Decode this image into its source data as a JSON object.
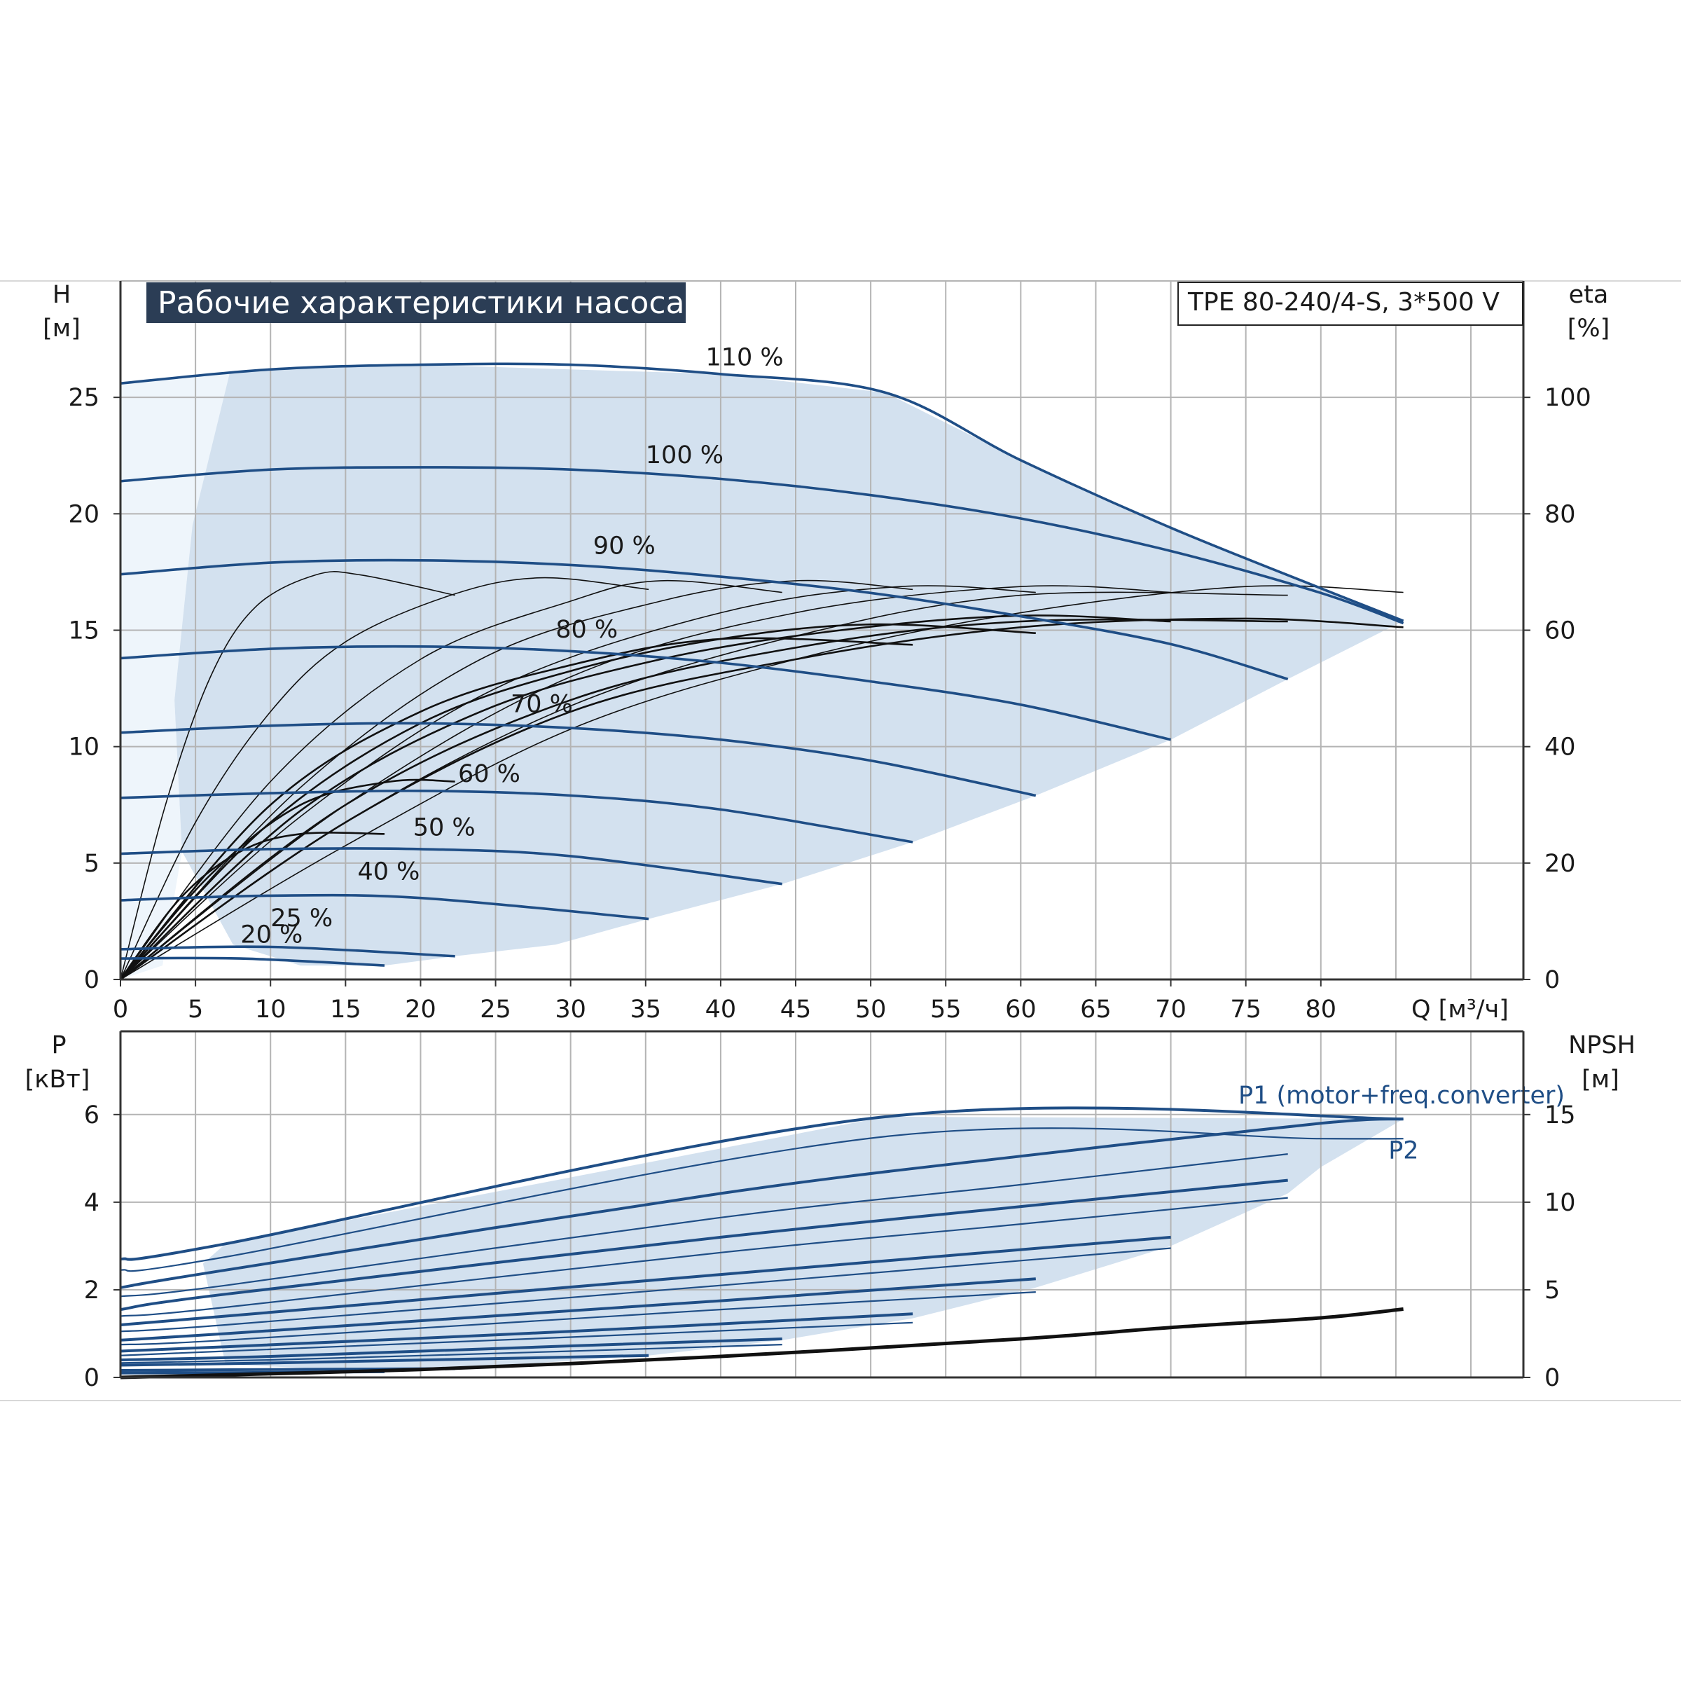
{
  "colors": {
    "grid": "#b4b4b4",
    "axis": "#333333",
    "speed_curve": "#1f4e86",
    "efficiency": "#111111",
    "region_fill": "#d3e1ef",
    "region_fill_light": "#eef5fb",
    "banner_bg": "#2b3d55"
  },
  "chart_data": [
    {
      "type": "line",
      "title": "Рабочие характеристики насоса",
      "model_label": "TPE 80-240/4-S, 3*500 V",
      "xlabel": "Q [м³/ч]",
      "ylabel_main": "H",
      "ylabel_unit": "[м]",
      "y2label_main": "eta",
      "y2label_unit": "[%]",
      "xlim": [
        0,
        93.5
      ],
      "ylim": [
        0,
        30
      ],
      "y2lim": [
        0,
        120
      ],
      "x_ticks": [
        0,
        5,
        10,
        15,
        20,
        25,
        30,
        35,
        40,
        45,
        50,
        55,
        60,
        65,
        70,
        75,
        80
      ],
      "y_ticks": [
        0,
        5,
        10,
        15,
        20,
        25
      ],
      "y2_ticks": [
        0,
        20,
        40,
        60,
        80,
        100
      ],
      "grid": true,
      "series": [
        {
          "name": "110 %",
          "label_at": [
            39,
            26.2
          ],
          "x": [
            0,
            10,
            20,
            30,
            40,
            51,
            60,
            70,
            80,
            85.5
          ],
          "y": [
            25.6,
            26.2,
            26.4,
            26.4,
            26.0,
            25.2,
            22.3,
            19.4,
            16.8,
            15.4
          ]
        },
        {
          "name": "100 %",
          "label_at": [
            35,
            22
          ],
          "x": [
            0,
            10,
            20,
            30,
            40,
            50,
            60,
            70,
            80,
            85.5
          ],
          "y": [
            21.4,
            21.9,
            22.0,
            21.9,
            21.5,
            20.8,
            19.8,
            18.4,
            16.6,
            15.3
          ]
        },
        {
          "name": "90 %",
          "label_at": [
            31.5,
            18.1
          ],
          "x": [
            0,
            10,
            20,
            30,
            40,
            50,
            60,
            70,
            77.8
          ],
          "y": [
            17.4,
            17.9,
            18.0,
            17.8,
            17.3,
            16.6,
            15.6,
            14.4,
            12.9
          ]
        },
        {
          "name": "80 %",
          "label_at": [
            29,
            14.5
          ],
          "x": [
            0,
            10,
            20,
            30,
            40,
            50,
            60,
            70
          ],
          "y": [
            13.8,
            14.2,
            14.3,
            14.1,
            13.6,
            12.8,
            11.8,
            10.3
          ]
        },
        {
          "name": "70 %",
          "label_at": [
            26,
            11.3
          ],
          "x": [
            0,
            10,
            20,
            30,
            40,
            50,
            61
          ],
          "y": [
            10.6,
            10.9,
            11.0,
            10.8,
            10.3,
            9.4,
            7.9
          ]
        },
        {
          "name": "60 %",
          "label_at": [
            22.5,
            8.3
          ],
          "x": [
            0,
            10,
            20,
            30,
            40,
            52.8
          ],
          "y": [
            7.8,
            8.0,
            8.1,
            7.9,
            7.3,
            5.9
          ]
        },
        {
          "name": "50 %",
          "label_at": [
            19.5,
            6.0
          ],
          "x": [
            0,
            10,
            20,
            30,
            44.1
          ],
          "y": [
            5.4,
            5.6,
            5.6,
            5.3,
            4.1
          ]
        },
        {
          "name": "40 %",
          "label_at": [
            15.8,
            4.1
          ],
          "x": [
            0,
            10,
            20,
            35.2
          ],
          "y": [
            3.4,
            3.6,
            3.5,
            2.6
          ]
        },
        {
          "name": "25 %",
          "label_at": [
            10,
            2.1
          ],
          "x": [
            0,
            10,
            22.3
          ],
          "y": [
            1.3,
            1.4,
            1.0
          ]
        },
        {
          "name": "20 %",
          "label_at": [
            8,
            1.4
          ],
          "x": [
            0,
            8,
            17.6
          ],
          "y": [
            0.9,
            0.9,
            0.6
          ]
        }
      ],
      "efficiency_curves_eta_percent": [
        {
          "x": [
            0,
            3,
            6,
            9,
            13,
            16,
            22.3
          ],
          "y": [
            0,
            30,
            52,
            64,
            69.5,
            69.5,
            66
          ]
        },
        {
          "x": [
            0,
            5,
            10,
            15,
            22,
            28,
            35.2
          ],
          "y": [
            0,
            27,
            46,
            58,
            66,
            69,
            67
          ]
        },
        {
          "x": [
            0,
            10,
            20,
            30,
            36,
            44.1
          ],
          "y": [
            0,
            34,
            55,
            65,
            68.5,
            66.5
          ]
        },
        {
          "x": [
            0,
            12,
            24,
            36,
            45,
            52.8
          ],
          "y": [
            0,
            33,
            55,
            65,
            68.5,
            67
          ]
        },
        {
          "x": [
            0,
            12,
            25,
            40,
            52,
            61
          ],
          "y": [
            0,
            28,
            50,
            63,
            67.5,
            66.5
          ]
        },
        {
          "x": [
            0,
            15,
            30,
            45,
            60,
            70
          ],
          "y": [
            0,
            30,
            52,
            63,
            67.5,
            66.5
          ]
        },
        {
          "x": [
            0,
            15,
            30,
            45,
            60,
            77.8
          ],
          "y": [
            0,
            27,
            47,
            59,
            66,
            66
          ]
        },
        {
          "x": [
            0,
            15,
            30,
            45,
            60,
            75,
            85.5
          ],
          "y": [
            0,
            23,
            43,
            55,
            63,
            67.5,
            66.5
          ]
        },
        {
          "x": [
            0,
            4,
            8,
            12,
            17.6
          ],
          "y": [
            0,
            14,
            22,
            25,
            25
          ]
        },
        {
          "x": [
            0,
            6,
            12,
            18,
            22.3
          ],
          "y": [
            0,
            18,
            30,
            34,
            34
          ]
        },
        {
          "x": [
            0,
            10,
            20,
            30,
            40,
            52.8
          ],
          "y": [
            0,
            30,
            46,
            54,
            58.5,
            57.5
          ]
        },
        {
          "x": [
            0,
            10,
            20,
            30,
            40,
            50,
            61
          ],
          "y": [
            0,
            27,
            44,
            53,
            58.5,
            61,
            59.5
          ]
        },
        {
          "x": [
            0,
            12,
            24,
            36,
            48,
            60,
            70
          ],
          "y": [
            0,
            29,
            46,
            55,
            60,
            62.5,
            61.5
          ]
        },
        {
          "x": [
            0,
            15,
            30,
            45,
            60,
            77.8
          ],
          "y": [
            0,
            30,
            48,
            57,
            61.5,
            61.5
          ]
        },
        {
          "x": [
            0,
            15,
            30,
            45,
            60,
            75,
            85.5
          ],
          "y": [
            0,
            27,
            46,
            55,
            60.5,
            62,
            60.5
          ]
        }
      ],
      "operating_region_H": {
        "x": [
          7.3,
          20,
          40,
          51,
          60,
          70,
          80,
          85.5,
          77.8,
          70,
          61,
          52.8,
          44.1,
          35.2,
          29,
          22.3,
          17.6,
          12,
          7.5,
          4.1,
          3.6,
          4.8
        ],
        "y": [
          26.1,
          26.4,
          26.0,
          25.2,
          22.3,
          19.4,
          16.8,
          15.4,
          12.9,
          10.3,
          7.9,
          5.9,
          4.1,
          2.6,
          1.5,
          1.0,
          0.6,
          0.6,
          1.5,
          5.5,
          12,
          19.5
        ]
      },
      "light_region_H": {
        "x": [
          0,
          7.3,
          4.8,
          3.6,
          4.1,
          2.8,
          0
        ],
        "y": [
          25.6,
          26.1,
          19.5,
          12,
          5.5,
          0.6,
          0
        ]
      }
    },
    {
      "type": "line",
      "ylabel_main": "P",
      "ylabel_unit": "[кВт]",
      "y2label_main": "NPSH",
      "y2label_unit": "[м]",
      "xlim": [
        0,
        93.5
      ],
      "ylim": [
        0,
        7.9
      ],
      "y2lim": [
        0,
        19.75
      ],
      "y_ticks": [
        0,
        2,
        4,
        6
      ],
      "y2_ticks": [
        0,
        5,
        10,
        15
      ],
      "grid": true,
      "labels": {
        "p1": "P1 (motor+freq.converter)",
        "p2": "P2"
      },
      "p1_label_at": [
        74.5,
        6.25
      ],
      "p2_label_at": [
        84.5,
        5.0
      ],
      "series_p1": [
        {
          "x": [
            0,
            7,
            51,
            85.5
          ],
          "y": [
            2.7,
            3.05,
            5.95,
            5.9
          ]
        },
        {
          "x": [
            0,
            7,
            40,
            60,
            80,
            85.5
          ],
          "y": [
            2.05,
            2.45,
            4.2,
            5.05,
            5.8,
            5.9
          ]
        },
        {
          "x": [
            0,
            7,
            40,
            60,
            77.8
          ],
          "y": [
            1.55,
            1.9,
            3.2,
            3.9,
            4.5
          ]
        },
        {
          "x": [
            0,
            7,
            40,
            70
          ],
          "y": [
            1.2,
            1.4,
            2.35,
            3.2
          ]
        },
        {
          "x": [
            0,
            7,
            40,
            61
          ],
          "y": [
            0.85,
            1.0,
            1.75,
            2.25
          ]
        },
        {
          "x": [
            0,
            7,
            30,
            52.8
          ],
          "y": [
            0.6,
            0.7,
            1.05,
            1.45
          ]
        },
        {
          "x": [
            0,
            10,
            30,
            44.1
          ],
          "y": [
            0.4,
            0.48,
            0.72,
            0.88
          ]
        },
        {
          "x": [
            0,
            10,
            35.2
          ],
          "y": [
            0.28,
            0.33,
            0.5
          ]
        },
        {
          "x": [
            0,
            10,
            22.3
          ],
          "y": [
            0.16,
            0.18,
            0.2
          ]
        },
        {
          "x": [
            0,
            8,
            17.6
          ],
          "y": [
            0.1,
            0.11,
            0.13
          ]
        }
      ],
      "series_p2": [
        {
          "x": [
            0,
            7,
            51,
            80,
            85.5
          ],
          "y": [
            2.45,
            2.75,
            5.5,
            5.45,
            5.45
          ]
        },
        {
          "x": [
            0,
            7,
            40,
            60,
            77.8
          ],
          "y": [
            1.85,
            2.1,
            3.65,
            4.4,
            5.1
          ]
        },
        {
          "x": [
            0,
            7,
            40,
            60,
            77.8
          ],
          "y": [
            1.4,
            1.6,
            2.85,
            3.5,
            4.1
          ]
        },
        {
          "x": [
            0,
            7,
            40,
            70
          ],
          "y": [
            1.05,
            1.2,
            2.1,
            2.95
          ]
        },
        {
          "x": [
            0,
            7,
            40,
            61
          ],
          "y": [
            0.75,
            0.85,
            1.55,
            1.95
          ]
        },
        {
          "x": [
            0,
            7,
            30,
            52.8
          ],
          "y": [
            0.5,
            0.6,
            0.92,
            1.25
          ]
        },
        {
          "x": [
            0,
            10,
            30,
            44.1
          ],
          "y": [
            0.33,
            0.4,
            0.6,
            0.75
          ]
        }
      ],
      "npsh_m": {
        "x": [
          0,
          20,
          40,
          60,
          70,
          80,
          85.5
        ],
        "y": [
          0,
          0.45,
          1.2,
          2.2,
          2.85,
          3.4,
          3.9
        ]
      },
      "operating_region_P": {
        "x": [
          7,
          51,
          85.5,
          80,
          77.8,
          70,
          61,
          52.8,
          44.1,
          35.2,
          22.3,
          17.6,
          7,
          5.5
        ],
        "y": [
          3.05,
          5.95,
          5.9,
          4.8,
          4.2,
          3.0,
          2.05,
          1.35,
          0.85,
          0.5,
          0.2,
          0.13,
          0.3,
          2.6
        ]
      }
    }
  ]
}
